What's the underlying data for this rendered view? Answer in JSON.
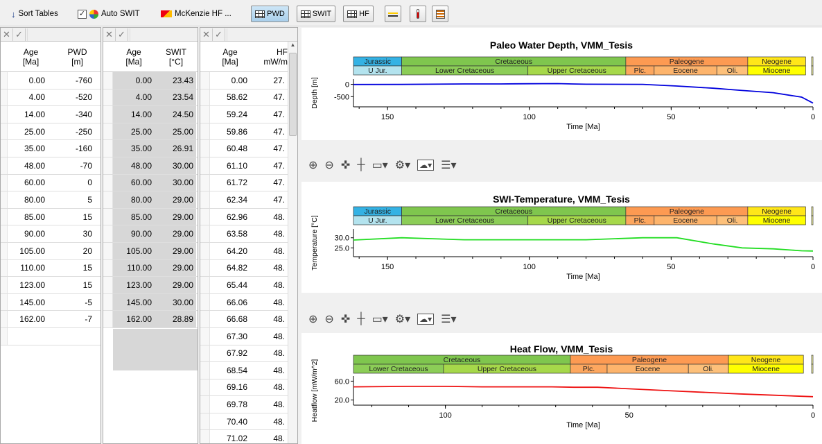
{
  "toolbar": {
    "sort_tables": "Sort Tables",
    "auto_swit": "Auto SWIT",
    "mckenzie": "McKenzie HF ...",
    "pwd": "PWD",
    "swit": "SWIT",
    "hf": "HF"
  },
  "pwd_table": {
    "headers": [
      [
        "Age",
        "[Ma]"
      ],
      [
        "PWD",
        "[m]"
      ]
    ],
    "rows": [
      [
        "0.00",
        "-760"
      ],
      [
        "4.00",
        "-520"
      ],
      [
        "14.00",
        "-340"
      ],
      [
        "25.00",
        "-250"
      ],
      [
        "35.00",
        "-160"
      ],
      [
        "48.00",
        "-70"
      ],
      [
        "60.00",
        "0"
      ],
      [
        "80.00",
        "5"
      ],
      [
        "85.00",
        "15"
      ],
      [
        "90.00",
        "30"
      ],
      [
        "105.00",
        "20"
      ],
      [
        "110.00",
        "15"
      ],
      [
        "123.00",
        "15"
      ],
      [
        "145.00",
        "-5"
      ],
      [
        "162.00",
        "-7"
      ],
      [
        "",
        ""
      ]
    ]
  },
  "swit_table": {
    "headers": [
      [
        "Age",
        "[Ma]"
      ],
      [
        "SWIT",
        "[°C]"
      ]
    ],
    "rows": [
      [
        "0.00",
        "23.43"
      ],
      [
        "4.00",
        "23.54"
      ],
      [
        "14.00",
        "24.50"
      ],
      [
        "25.00",
        "25.00"
      ],
      [
        "35.00",
        "26.91"
      ],
      [
        "48.00",
        "30.00"
      ],
      [
        "60.00",
        "30.00"
      ],
      [
        "80.00",
        "29.00"
      ],
      [
        "85.00",
        "29.00"
      ],
      [
        "90.00",
        "29.00"
      ],
      [
        "105.00",
        "29.00"
      ],
      [
        "110.00",
        "29.00"
      ],
      [
        "123.00",
        "29.00"
      ],
      [
        "145.00",
        "30.00"
      ],
      [
        "162.00",
        "28.89"
      ]
    ]
  },
  "hf_table": {
    "headers": [
      [
        "Age",
        "[Ma]"
      ],
      [
        "HF",
        "mW/m"
      ]
    ],
    "rows": [
      [
        "0.00",
        "27."
      ],
      [
        "58.62",
        "47."
      ],
      [
        "59.24",
        "47."
      ],
      [
        "59.86",
        "47."
      ],
      [
        "60.48",
        "47."
      ],
      [
        "61.10",
        "47."
      ],
      [
        "61.72",
        "47."
      ],
      [
        "62.34",
        "47."
      ],
      [
        "62.96",
        "48."
      ],
      [
        "63.58",
        "48."
      ],
      [
        "64.20",
        "48."
      ],
      [
        "64.82",
        "48."
      ],
      [
        "65.44",
        "48."
      ],
      [
        "66.06",
        "48."
      ],
      [
        "66.68",
        "48."
      ],
      [
        "67.30",
        "48."
      ],
      [
        "67.92",
        "48."
      ],
      [
        "68.54",
        "48."
      ],
      [
        "69.16",
        "48."
      ],
      [
        "69.78",
        "48."
      ],
      [
        "70.40",
        "48."
      ],
      [
        "71.02",
        "48."
      ]
    ]
  },
  "charts": [
    {
      "title": "Paleo Water Depth, VMM_Tesis",
      "ylabel": "Depth [m]",
      "xlabel": "Time [Ma]",
      "yticks": [
        "-500",
        "0"
      ],
      "xticks": [
        "150",
        "100",
        "50",
        "0"
      ],
      "color": "#0000dd",
      "periods": [
        {
          "label": "Jurassic",
          "color": "#34b2e4"
        },
        {
          "label": "Cretaceous",
          "color": "#7fc64e"
        },
        {
          "label": "Paleogene",
          "color": "#fd9a52"
        },
        {
          "label": "Neogene",
          "color": "#ffe619"
        }
      ],
      "epochs": [
        {
          "label": "U Jur.",
          "color": "#b3e3ee"
        },
        {
          "label": "Lower Cretaceous",
          "color": "#8ccd57"
        },
        {
          "label": "Upper Cretaceous",
          "color": "#a6d84a"
        },
        {
          "label": "Plc.",
          "color": "#fda75f"
        },
        {
          "label": "Eocene",
          "color": "#fdb46c"
        },
        {
          "label": "Oli.",
          "color": "#fdc07a"
        },
        {
          "label": "Miocene",
          "color": "#ffff00"
        }
      ]
    },
    {
      "title": "SWI-Temperature, VMM_Tesis",
      "ylabel": "Temperature [°C]",
      "xlabel": "Time [Ma]",
      "yticks": [
        "30.0",
        "25.0"
      ],
      "xticks": [
        "150",
        "100",
        "50",
        "0"
      ],
      "color": "#22dd22",
      "periods": [
        {
          "label": "Jurassic",
          "color": "#34b2e4"
        },
        {
          "label": "Cretaceous",
          "color": "#7fc64e"
        },
        {
          "label": "Paleogene",
          "color": "#fd9a52"
        },
        {
          "label": "Neogene",
          "color": "#ffe619"
        }
      ],
      "epochs": [
        {
          "label": "U Jur.",
          "color": "#b3e3ee"
        },
        {
          "label": "Lower Cretaceous",
          "color": "#8ccd57"
        },
        {
          "label": "Upper Cretaceous",
          "color": "#a6d84a"
        },
        {
          "label": "Plc.",
          "color": "#fda75f"
        },
        {
          "label": "Eocene",
          "color": "#fdb46c"
        },
        {
          "label": "Oli.",
          "color": "#fdc07a"
        },
        {
          "label": "Miocene",
          "color": "#ffff00"
        }
      ]
    },
    {
      "title": "Heat Flow, VMM_Tesis",
      "ylabel": "Heatflow [mW/m^2]",
      "xlabel": "Time [Ma]",
      "yticks": [
        "60.0",
        "20.0"
      ],
      "xticks": [
        "100",
        "50",
        "0"
      ],
      "color": "#ee1111",
      "periods": [
        {
          "label": "Cretaceous",
          "color": "#7fc64e"
        },
        {
          "label": "Paleogene",
          "color": "#fd9a52"
        },
        {
          "label": "Neogene",
          "color": "#ffe619"
        }
      ],
      "epochs": [
        {
          "label": "Lower Cretaceous",
          "color": "#8ccd57"
        },
        {
          "label": "Upper Cretaceous",
          "color": "#a6d84a"
        },
        {
          "label": "Plc.",
          "color": "#fda75f"
        },
        {
          "label": "Eocene",
          "color": "#fdb46c"
        },
        {
          "label": "Oli.",
          "color": "#fdc07a"
        },
        {
          "label": "Miocene",
          "color": "#ffff00"
        }
      ]
    }
  ],
  "chart_data": [
    {
      "type": "line",
      "title": "Paleo Water Depth, VMM_Tesis",
      "xlabel": "Time [Ma]",
      "ylabel": "Depth [m]",
      "x": [
        162,
        145,
        123,
        110,
        105,
        90,
        85,
        80,
        60,
        48,
        35,
        25,
        14,
        4,
        0
      ],
      "y": [
        -7,
        -5,
        15,
        15,
        20,
        30,
        15,
        5,
        0,
        -70,
        -160,
        -250,
        -340,
        -520,
        -760
      ],
      "xlim": [
        162,
        0
      ]
    },
    {
      "type": "line",
      "title": "SWI-Temperature, VMM_Tesis",
      "xlabel": "Time [Ma]",
      "ylabel": "Temperature [°C]",
      "x": [
        162,
        145,
        123,
        110,
        105,
        90,
        85,
        80,
        60,
        48,
        35,
        25,
        14,
        4,
        0
      ],
      "y": [
        28.89,
        30.0,
        29.0,
        29.0,
        29.0,
        29.0,
        29.0,
        29.0,
        30.0,
        30.0,
        26.91,
        25.0,
        24.5,
        23.54,
        23.43
      ],
      "xlim": [
        162,
        0
      ]
    },
    {
      "type": "line",
      "title": "Heat Flow, VMM_Tesis",
      "xlabel": "Time [Ma]",
      "ylabel": "Heatflow [mW/m^2]",
      "x": [
        125,
        110,
        100,
        90,
        80,
        71,
        65,
        58.6,
        40,
        20,
        0
      ],
      "y": [
        48,
        49,
        49,
        48,
        48,
        48,
        47,
        47,
        40,
        33,
        27
      ],
      "xlim": [
        125,
        0
      ]
    }
  ]
}
